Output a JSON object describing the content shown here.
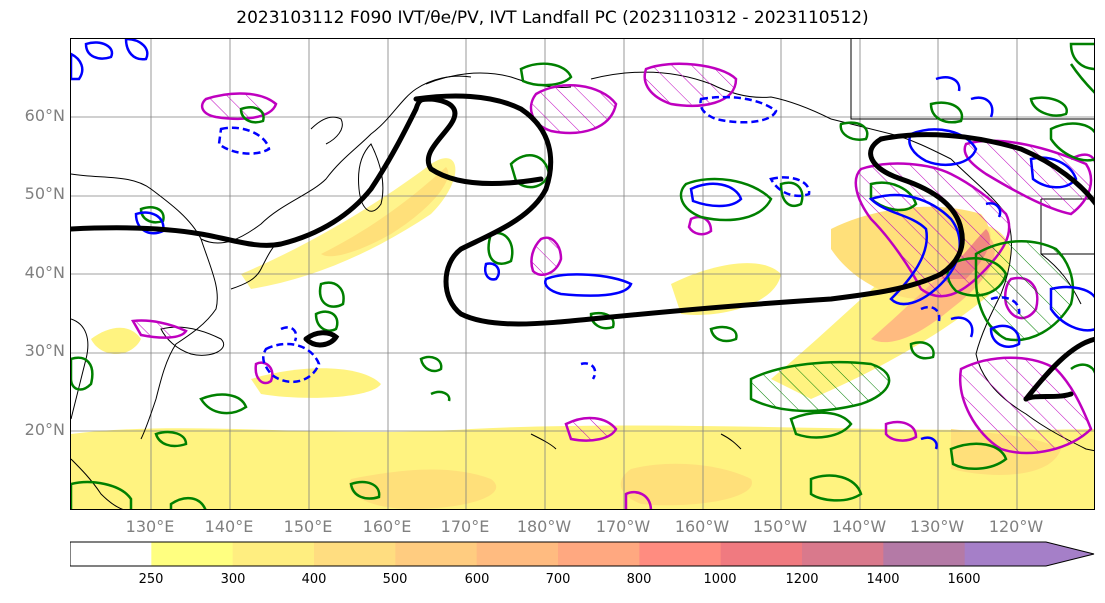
{
  "title": "2023103112 F090 IVT/θe/PV, IVT Landfall PC (2023110312 - 2023110512)",
  "latitude_labels": [
    "60°N",
    "50°N",
    "40°N",
    "30°N",
    "20°N"
  ],
  "longitude_labels": [
    "130°E",
    "140°E",
    "150°E",
    "160°E",
    "170°E",
    "180°W",
    "170°W",
    "160°W",
    "150°W",
    "140°W",
    "130°W",
    "120°W"
  ],
  "colorbar": {
    "ticks": [
      "250",
      "300",
      "400",
      "500",
      "600",
      "700",
      "800",
      "1000",
      "1200",
      "1400",
      "1600"
    ],
    "colors": [
      "#ffffff",
      "#ffff80",
      "#ffee80",
      "#ffdd80",
      "#ffcc80",
      "#ffbb80",
      "#ffa880",
      "#ff8c80",
      "#f07a80",
      "#d9798c",
      "#b47aa6",
      "#a57fc8"
    ],
    "extend": "max"
  },
  "colors": {
    "ivt_contour_pv": "#000000",
    "theta_e": "#008000",
    "pv_positive": "#0000ff",
    "pv_negative": "#0000ff",
    "landfall_pc": "#bf00bf",
    "coastline": "#000000",
    "grid": "#808080"
  }
}
